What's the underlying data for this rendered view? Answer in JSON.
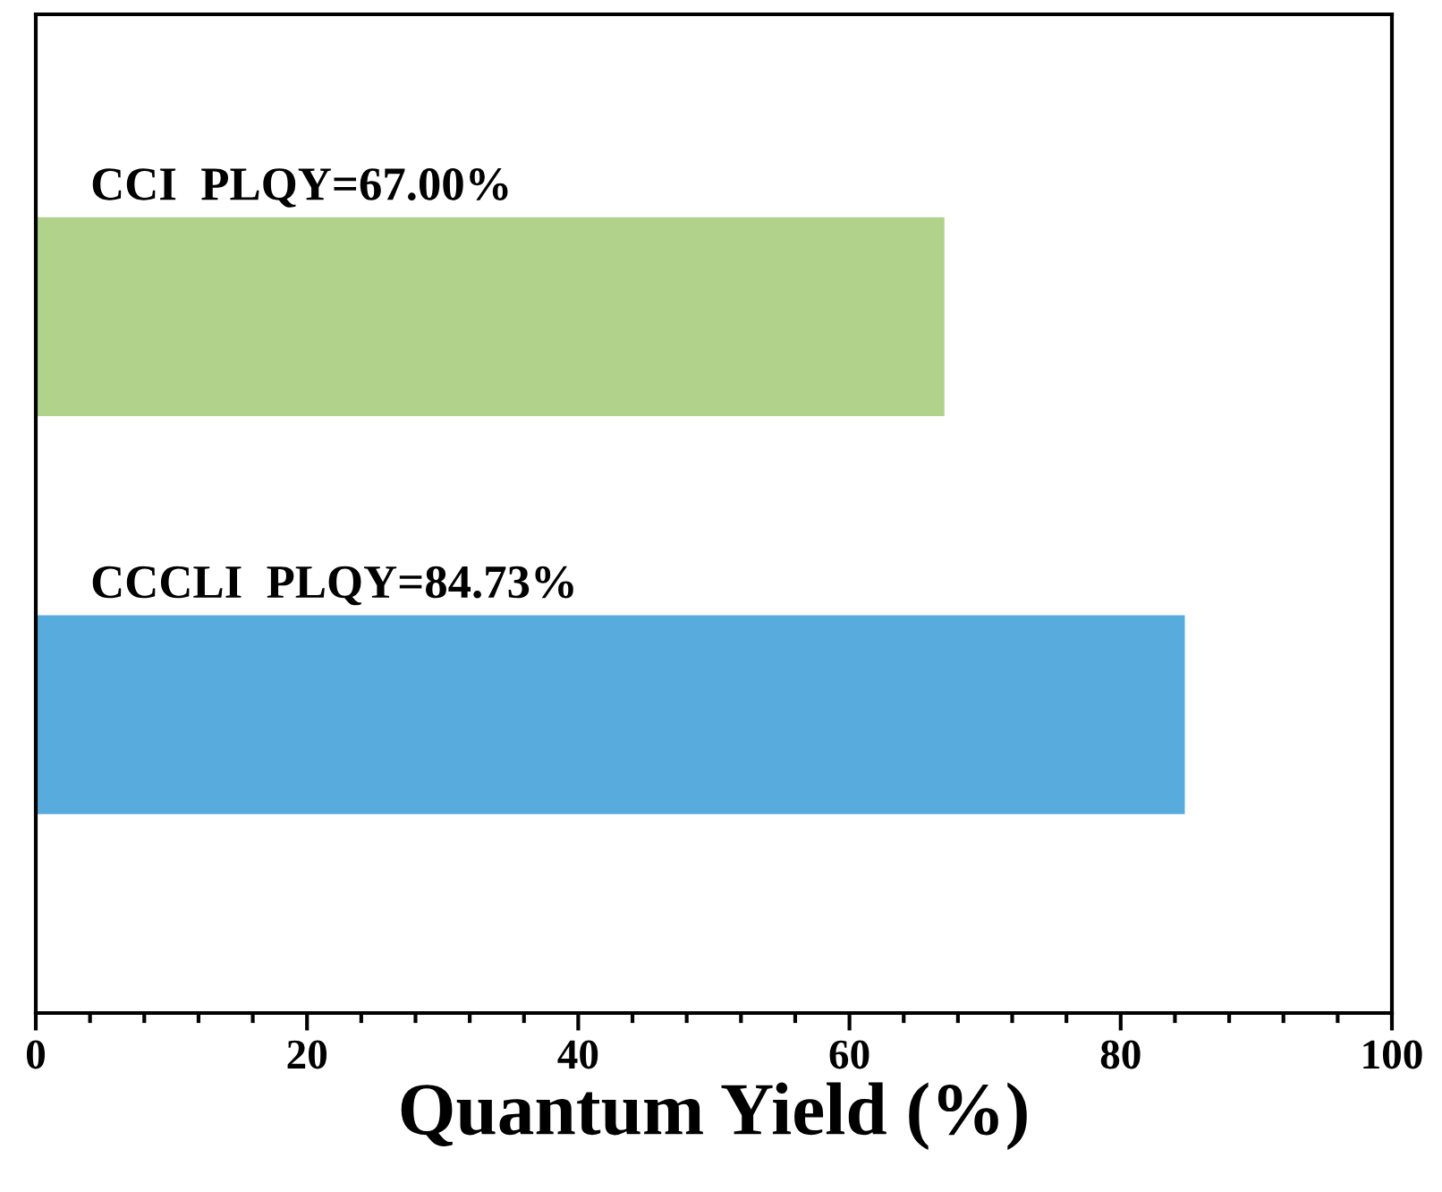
{
  "chart_data": {
    "type": "bar",
    "orientation": "horizontal",
    "xlabel": "Quantum Yield (%)",
    "categories": [
      null,
      null
    ],
    "values": [
      67.0,
      84.73
    ],
    "colors": [
      "#b0d28a",
      "#58abdd"
    ],
    "value_labels": [
      "CCI  PLQY=67.00%",
      "CCCLI  PLQY=84.73%"
    ],
    "xlim": [
      0,
      100
    ],
    "xticks": [
      0,
      20,
      40,
      60,
      80,
      100
    ],
    "tick_labels": "x",
    "grid": false,
    "legend": false
  }
}
